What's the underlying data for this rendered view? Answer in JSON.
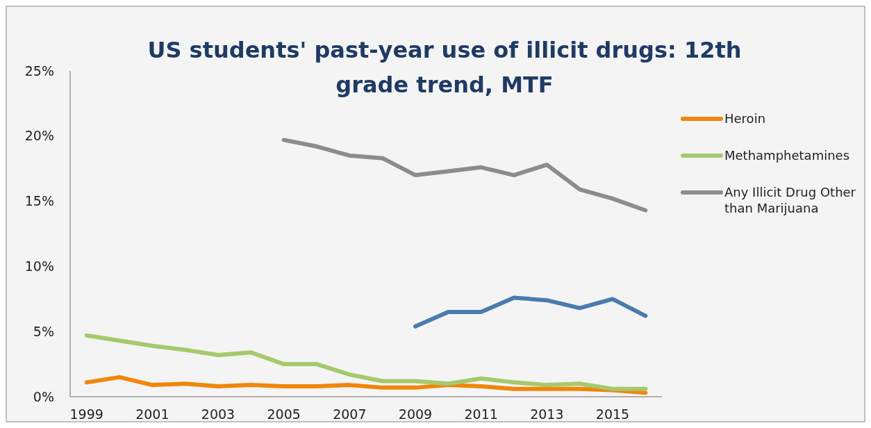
{
  "chart_data": {
    "type": "line",
    "title": "US students' past-year use of illicit drugs: 12th grade trend, MTF",
    "categories": [
      "1999",
      null,
      "2001",
      null,
      "2003",
      null,
      "2005",
      null,
      "2007",
      null,
      "2009",
      null,
      "2011",
      null,
      "2013",
      null,
      "2015",
      null
    ],
    "series": [
      {
        "name": "Heroin",
        "color": "#f0860b",
        "values": [
          1.1,
          1.5,
          0.9,
          1.0,
          0.8,
          0.9,
          0.8,
          0.8,
          0.9,
          0.7,
          0.7,
          0.9,
          0.8,
          0.6,
          0.6,
          0.6,
          0.5,
          0.3
        ]
      },
      {
        "name": "Methamphetamines",
        "color": "#a6c96a",
        "values": [
          4.7,
          4.3,
          3.9,
          3.6,
          3.2,
          3.4,
          2.5,
          2.5,
          1.7,
          1.2,
          1.2,
          1.0,
          1.4,
          1.1,
          0.9,
          1.0,
          0.6,
          0.6
        ]
      },
      {
        "color": "#4b7bae",
        "values": [
          null,
          null,
          null,
          null,
          null,
          null,
          null,
          null,
          null,
          null,
          5.4,
          6.5,
          6.5,
          7.6,
          7.4,
          6.8,
          7.5,
          6.2
        ]
      },
      {
        "name": "Any Illicit Drug Other than Marijuana",
        "color": "#8c8c8c",
        "values": [
          null,
          null,
          null,
          null,
          null,
          null,
          19.7,
          19.2,
          18.5,
          18.3,
          17.0,
          17.3,
          17.6,
          17.0,
          17.8,
          15.9,
          15.2,
          14.3
        ]
      }
    ],
    "ylim": [
      0,
      25
    ],
    "yticks": [
      {
        "value": 0,
        "label": "0%"
      },
      {
        "value": 5,
        "label": "5%"
      },
      {
        "value": 10,
        "label": "10%"
      },
      {
        "value": 15,
        "label": "15%"
      },
      {
        "value": 20,
        "label": "20%"
      },
      {
        "value": 25,
        "label": "25%"
      }
    ],
    "grid": false,
    "legend": "right",
    "marker": "none",
    "line_style": "solid"
  }
}
